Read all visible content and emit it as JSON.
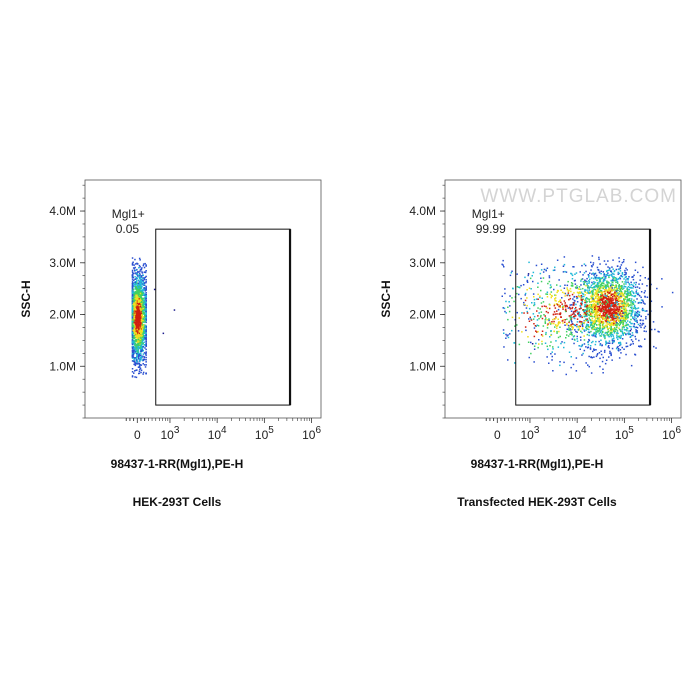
{
  "watermark": "WWW.PTGLAB.COM",
  "colors": {
    "low": "#1a1a8c",
    "mid": "#22c0c0",
    "high": "#f0e020",
    "peak": "#d02010"
  },
  "chart_data": [
    {
      "type": "scatter",
      "subtype": "flow-cytometry-density",
      "title": "HEK-293T Cells",
      "xlabel": "98437-1-RR(Mgl1),PE-H",
      "ylabel": "SSC-H",
      "x_scale": "biexponential",
      "x_ticks": [
        "0",
        "10^3",
        "10^4",
        "10^5",
        "10^6"
      ],
      "y_ticks": [
        "1.0M",
        "2.0M",
        "3.0M",
        "4.0M"
      ],
      "ylim": [
        0,
        4600000
      ],
      "gate": {
        "name": "Mgl1+",
        "percent": "0.05",
        "x_range": [
          500,
          350000
        ],
        "y_range": [
          250000,
          3650000
        ]
      },
      "populations": [
        {
          "x_center": 0,
          "y_center": 1950000,
          "x_spread": 130,
          "y_spread": 420000,
          "count": 2000,
          "x_min": -150,
          "x_max": 220
        }
      ],
      "sparse_points": [
        {
          "x": 1200,
          "y": 2100000
        },
        {
          "x": 700,
          "y": 1650000
        },
        {
          "x": 450,
          "y": 2500000
        }
      ]
    },
    {
      "type": "scatter",
      "subtype": "flow-cytometry-density",
      "title": "Transfected HEK-293T Cells",
      "xlabel": "98437-1-RR(Mgl1),PE-H",
      "ylabel": "SSC-H",
      "x_scale": "biexponential",
      "x_ticks": [
        "0",
        "10^3",
        "10^4",
        "10^5",
        "10^6"
      ],
      "y_ticks": [
        "1.0M",
        "2.0M",
        "3.0M",
        "4.0M"
      ],
      "ylim": [
        0,
        4600000
      ],
      "gate": {
        "name": "Mgl1+",
        "percent": "99.99",
        "x_range": [
          500,
          350000
        ],
        "y_range": [
          250000,
          3650000
        ]
      },
      "populations": [
        {
          "x_center": 45000,
          "y_center": 2150000,
          "x_spread_log": 0.35,
          "y_spread": 380000,
          "count": 1900,
          "log": true
        },
        {
          "x_center": 8000,
          "y_center": 2100000,
          "x_spread_log": 0.55,
          "y_spread": 420000,
          "count": 500,
          "log": true
        },
        {
          "x_center": 1500,
          "y_center": 2000000,
          "x_spread_log": 0.5,
          "y_spread": 500000,
          "count": 160,
          "log": true
        }
      ],
      "sparse_points": [
        {
          "x": 900,
          "y": 2800000
        },
        {
          "x": 1100,
          "y": 1450000
        },
        {
          "x": 130000,
          "y": 1700000
        }
      ]
    }
  ]
}
